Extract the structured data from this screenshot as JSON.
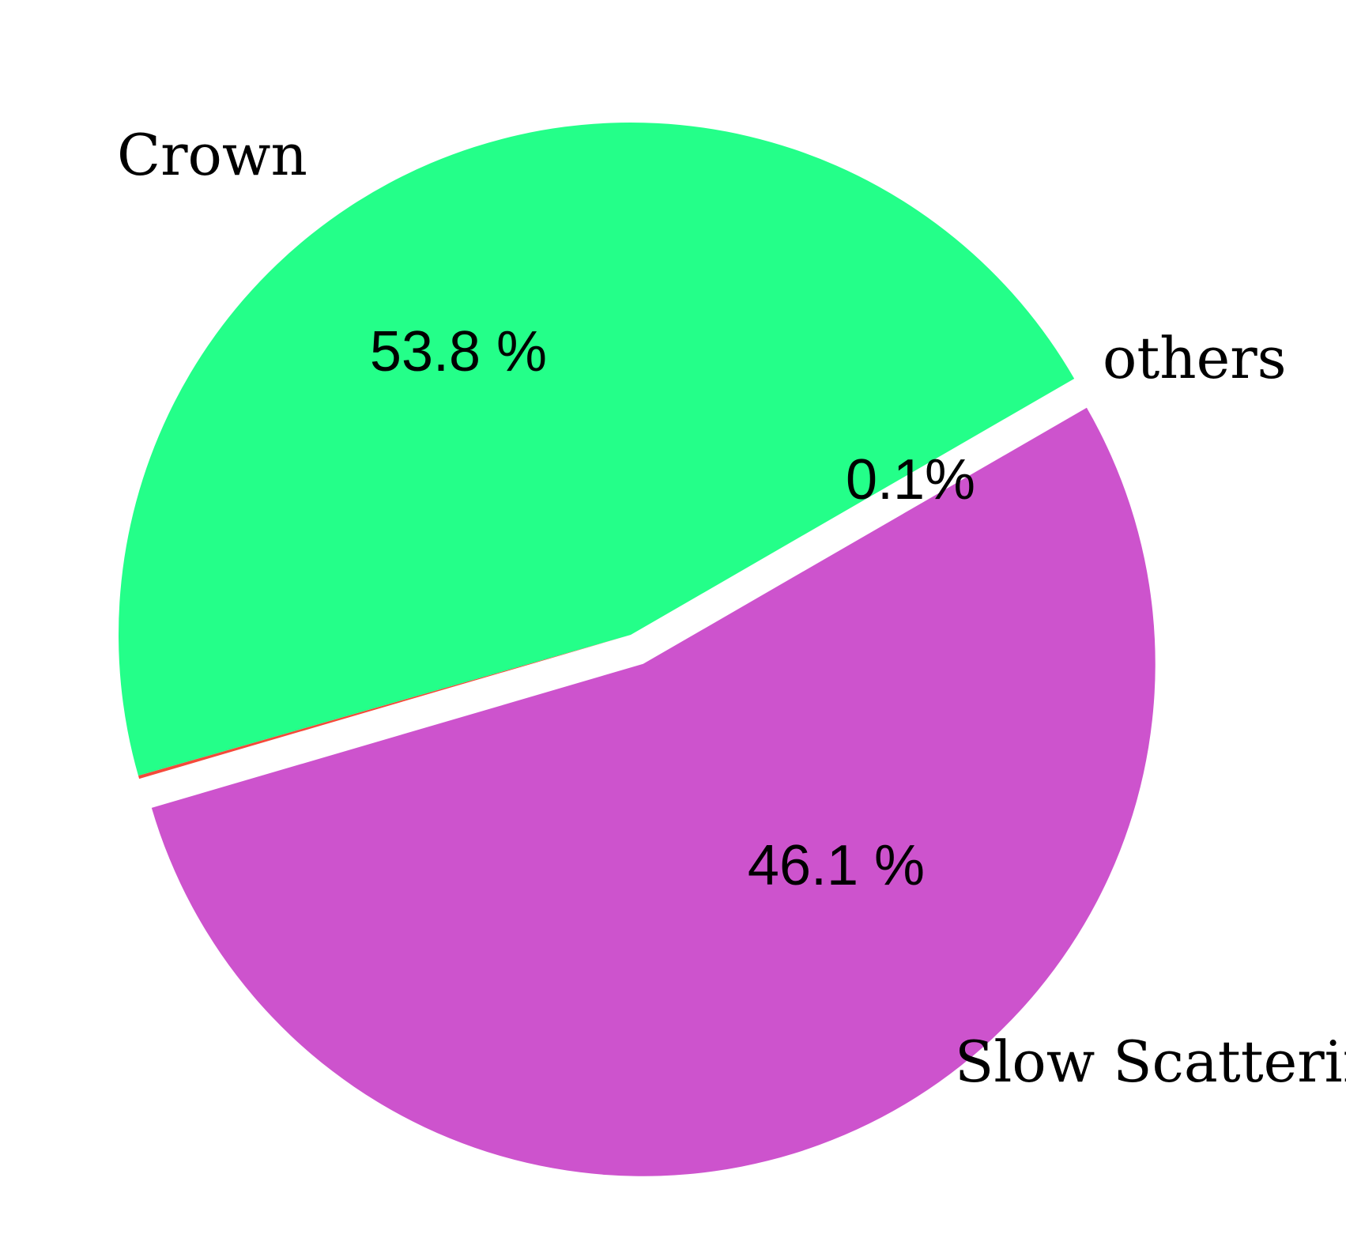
{
  "chart_data": {
    "type": "pie",
    "title": "",
    "slices": [
      {
        "label": "Crown",
        "value": 53.8,
        "pct_label": "53.8 %",
        "color": "#CD53CD",
        "exploded": true
      },
      {
        "label": "others",
        "value": 0.1,
        "pct_label": "0.1%",
        "color": "#F44A3B",
        "exploded": false
      },
      {
        "label": "Slow Scattering",
        "value": 46.1,
        "pct_label": "46.1 %",
        "color": "#24FF89",
        "exploded": false
      }
    ],
    "legend": "none"
  }
}
